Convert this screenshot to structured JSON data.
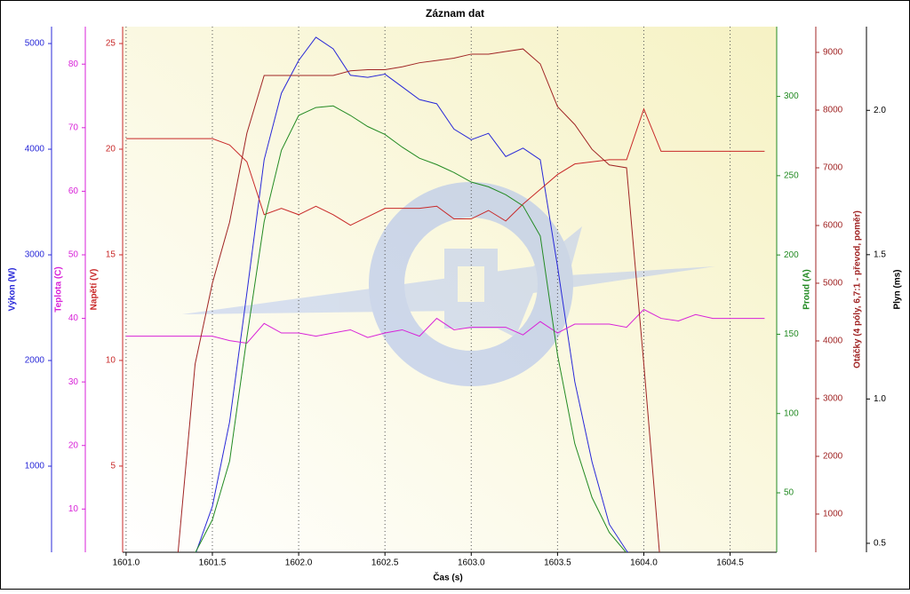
{
  "chart_data": {
    "type": "line",
    "title": "Záznam dat",
    "x_label": "Čas (s)",
    "grid": "x",
    "x": [
      1601,
      1601.1,
      1601.2,
      1601.3,
      1601.4,
      1601.5,
      1601.6,
      1601.7,
      1601.8,
      1601.9,
      1602,
      1602.1,
      1602.2,
      1602.3,
      1602.4,
      1602.5,
      1602.6,
      1602.7,
      1602.8,
      1602.9,
      1603,
      1603.1,
      1603.2,
      1603.3,
      1603.4,
      1603.5,
      1603.6,
      1603.7,
      1603.8,
      1603.9,
      1604,
      1604.1,
      1604.2,
      1604.3,
      1604.4,
      1604.5,
      1604.6,
      1604.7
    ],
    "xlim": [
      1600.98,
      1604.77
    ],
    "xticks": [
      {
        "value": 1601,
        "label": "1601.0"
      },
      1601.5,
      {
        "value": 1602,
        "label": "1602.0"
      },
      1602.5,
      {
        "value": 1603,
        "label": "1603.0"
      },
      1603.5,
      {
        "value": 1604,
        "label": "1604.0"
      },
      1604.5
    ],
    "series": [
      {
        "name": "Výkon (W)",
        "color": "#2828d8",
        "ylim": [
          185,
          5160
        ],
        "yticks": [
          1000,
          2000,
          3000,
          4000,
          5000
        ],
        "values": [
          0,
          0,
          0,
          0,
          160,
          620,
          1420,
          2640,
          3900,
          4530,
          4840,
          5060,
          4950,
          4700,
          4680,
          4710,
          4590,
          4470,
          4430,
          4190,
          4090,
          4150,
          3930,
          4010,
          3900,
          2890,
          1800,
          1040,
          450,
          200,
          0,
          0,
          0,
          0,
          0,
          0,
          0,
          0
        ]
      },
      {
        "name": "Teplota (C)",
        "color": "#d822d8",
        "ylim": [
          3.2,
          85.9
        ],
        "yticks": [
          10,
          20,
          30,
          40,
          50,
          60,
          70,
          80
        ],
        "values": [
          37.2,
          37.2,
          37.2,
          37.2,
          37.2,
          37.2,
          36.5,
          36.1,
          39.2,
          37.7,
          37.7,
          37.2,
          37.7,
          38.2,
          37.0,
          37.7,
          38.2,
          37.2,
          40.0,
          38.2,
          38.6,
          38.6,
          38.6,
          37.4,
          39.5,
          37.7,
          39.1,
          39.1,
          39.1,
          38.6,
          41.4,
          40.0,
          39.6,
          40.6,
          40.0,
          40.0,
          40.0,
          40.0
        ]
      },
      {
        "name": "Napětí (V)",
        "color": "#c82828",
        "ylim": [
          0.92,
          25.8
        ],
        "yticks": [
          5,
          10,
          15,
          20,
          25
        ],
        "values": [
          20.5,
          20.5,
          20.5,
          20.5,
          20.5,
          20.5,
          20.2,
          19.4,
          16.9,
          17.2,
          16.9,
          17.3,
          16.9,
          16.4,
          16.8,
          17.2,
          17.2,
          17.2,
          17.3,
          16.7,
          16.7,
          17.1,
          16.6,
          17.4,
          18.1,
          18.8,
          19.3,
          19.4,
          19.5,
          19.5,
          21.9,
          19.9,
          19.9,
          19.9,
          19.9,
          19.9,
          19.9,
          19.9
        ]
      },
      {
        "name": "Proud (A)",
        "color": "#228a22",
        "ylim": [
          12.5,
          344
        ],
        "yticks": [
          50,
          100,
          150,
          200,
          250,
          300
        ],
        "values": [
          0,
          0,
          0,
          0,
          12,
          33,
          70,
          148,
          221,
          266,
          288,
          293,
          294,
          288,
          281,
          276,
          268,
          261,
          257,
          252,
          246,
          243,
          238,
          231,
          212,
          137,
          81,
          47,
          25,
          12,
          0,
          0,
          0,
          0,
          0,
          0,
          0,
          0
        ]
      },
      {
        "name": "Otáčky (4 póly, 6,7:1 - převod, poměr)",
        "color": "#a02424",
        "ylim": [
          338,
          9446
        ],
        "yticks": [
          1000,
          2000,
          3000,
          4000,
          5000,
          6000,
          7000,
          8000,
          9000
        ],
        "values": [
          0,
          0,
          0,
          300,
          3600,
          5000,
          6060,
          7600,
          8600,
          8600,
          8600,
          8600,
          8600,
          8680,
          8700,
          8700,
          8750,
          8820,
          8860,
          8900,
          8970,
          8970,
          9015,
          9060,
          8800,
          8060,
          7750,
          7320,
          7050,
          7000,
          3600,
          0,
          0,
          0,
          0,
          0,
          0,
          0
        ]
      },
      {
        "name": "Plyn (ms)",
        "color": "#000000",
        "ylim": [
          0.469,
          2.29
        ],
        "yticks": [
          0.5,
          {
            "value": 1,
            "label": "1.0"
          },
          1.5,
          {
            "value": 2,
            "label": "2.0"
          }
        ]
      }
    ]
  }
}
